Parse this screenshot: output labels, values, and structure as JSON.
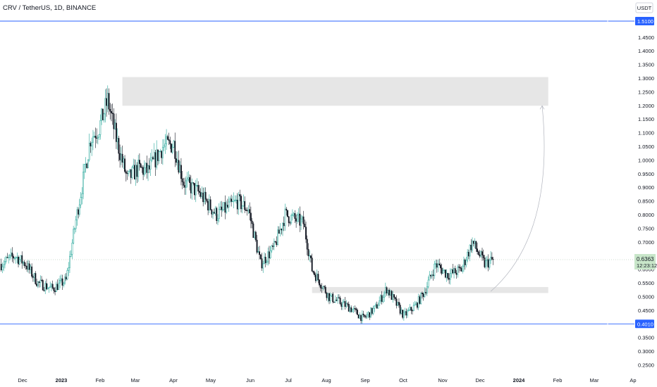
{
  "header": {
    "title": "CRV / TetherUS, 1D, BINANCE",
    "currency": "USDT"
  },
  "price_axis": {
    "ticks": [
      "1.4500",
      "1.4000",
      "1.3500",
      "1.3000",
      "1.2500",
      "1.2000",
      "1.1500",
      "1.1000",
      "1.0500",
      "1.0000",
      "0.9500",
      "0.9000",
      "0.8500",
      "0.8000",
      "0.7500",
      "0.7000",
      "0.6500",
      "0.6000",
      "0.5500",
      "0.5000",
      "0.4500",
      "0.4000",
      "0.3500",
      "0.3000",
      "0.2500"
    ],
    "upper_line_label": "1.5100",
    "lower_line_label": "0.4010",
    "current_price": "0.6363",
    "countdown": "12:23:12"
  },
  "time_axis": {
    "labels": [
      {
        "text": "Dec",
        "bold": false
      },
      {
        "text": "2023",
        "bold": true
      },
      {
        "text": "Feb",
        "bold": false
      },
      {
        "text": "Mar",
        "bold": false
      },
      {
        "text": "Apr",
        "bold": false
      },
      {
        "text": "May",
        "bold": false
      },
      {
        "text": "Jun",
        "bold": false
      },
      {
        "text": "Jul",
        "bold": false
      },
      {
        "text": "Aug",
        "bold": false
      },
      {
        "text": "Sep",
        "bold": false
      },
      {
        "text": "Oct",
        "bold": false
      },
      {
        "text": "Nov",
        "bold": false
      },
      {
        "text": "Dec",
        "bold": false
      },
      {
        "text": "2024",
        "bold": true
      },
      {
        "text": "Feb",
        "bold": false
      },
      {
        "text": "Mar",
        "bold": false
      },
      {
        "text": "Ap",
        "bold": false
      }
    ]
  },
  "colors": {
    "up": "#26a69a",
    "down": "#131722",
    "zone": "#e6e6e6",
    "hline": "#2962ff",
    "price_tag": "#c8e6c9"
  },
  "chart_data": {
    "type": "candlestick",
    "title": "CRV / TetherUS, 1D, BINANCE",
    "ylim": [
      0.22,
      1.55
    ],
    "xlim": [
      "2022-11-19",
      "2024-04-03"
    ],
    "series": [
      {
        "name": "CRV / TetherUS",
        "x": [
          "2022-11-20",
          "2022-12-01",
          "2022-12-10",
          "2022-12-20",
          "2023-01-01",
          "2023-01-12",
          "2023-01-20",
          "2023-02-01",
          "2023-02-08",
          "2023-02-15",
          "2023-02-22",
          "2023-03-03",
          "2023-03-12",
          "2023-03-20",
          "2023-04-01",
          "2023-04-10",
          "2023-04-18",
          "2023-05-01",
          "2023-05-15",
          "2023-06-01",
          "2023-06-10",
          "2023-06-20",
          "2023-07-01",
          "2023-07-10",
          "2023-07-25",
          "2023-08-01",
          "2023-08-15",
          "2023-09-01",
          "2023-09-12",
          "2023-09-22",
          "2023-10-01",
          "2023-10-15",
          "2023-10-25",
          "2023-11-01",
          "2023-11-10",
          "2023-11-20",
          "2023-12-01",
          "2023-12-10",
          "2023-12-20",
          "2023-12-27"
        ],
        "close": [
          0.62,
          0.65,
          0.62,
          0.55,
          0.53,
          0.56,
          0.78,
          1.08,
          1.12,
          1.22,
          1.08,
          0.93,
          0.97,
          0.96,
          1.05,
          1.06,
          0.92,
          0.88,
          0.8,
          0.85,
          0.82,
          0.62,
          0.68,
          0.8,
          0.77,
          0.6,
          0.5,
          0.46,
          0.42,
          0.46,
          0.53,
          0.43,
          0.47,
          0.52,
          0.62,
          0.58,
          0.6,
          0.7,
          0.62,
          0.6363
        ]
      }
    ],
    "horizontal_lines": [
      1.51,
      0.401
    ],
    "zones": [
      {
        "from": "2023-02-27",
        "to": "2024-02-10",
        "low": 1.2,
        "high": 1.305
      },
      {
        "from": "2023-08-01",
        "to": "2024-02-10",
        "low": 0.514,
        "high": 0.536
      }
    ],
    "projection_arrow": {
      "from": [
        "2023-12-25",
        0.52
      ],
      "to": [
        "2024-02-05",
        1.2
      ]
    },
    "current": 0.6363,
    "axis_min": 0.25,
    "axis_max": 1.45
  }
}
